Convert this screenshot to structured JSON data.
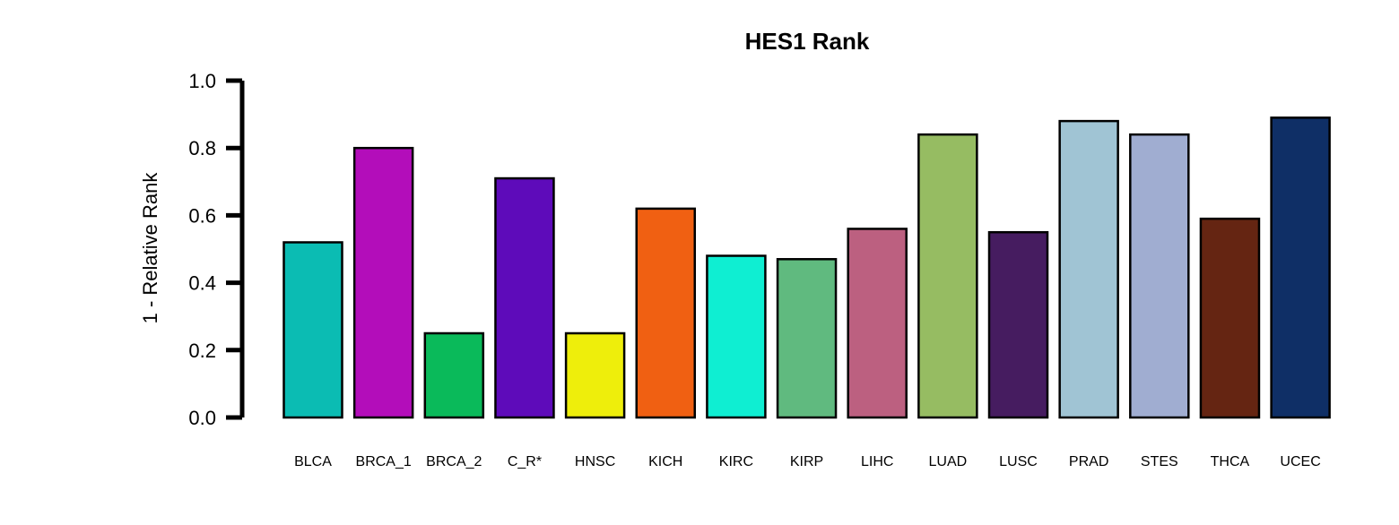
{
  "chart_data": {
    "type": "bar",
    "title": "HES1 Rank",
    "xlabel": "",
    "ylabel": "1 - Relative Rank",
    "ylim": [
      0,
      1
    ],
    "yticks": [
      "0.0",
      "0.2",
      "0.4",
      "0.6",
      "0.8",
      "1.0"
    ],
    "grid": false,
    "legend": "none",
    "categories": [
      "BLCA",
      "BRCA_1",
      "BRCA_2",
      "C_R*",
      "HNSC",
      "KICH",
      "KIRC",
      "KIRP",
      "LIHC",
      "LUAD",
      "LUSC",
      "PRAD",
      "STES",
      "THCA",
      "UCEC"
    ],
    "values": [
      0.52,
      0.8,
      0.25,
      0.71,
      0.25,
      0.62,
      0.48,
      0.47,
      0.56,
      0.84,
      0.55,
      0.88,
      0.84,
      0.59,
      0.89
    ],
    "colors": [
      "#0BBCB3",
      "#B30DBA",
      "#0ABA5A",
      "#5E0BBA",
      "#EEEE0B",
      "#F06012",
      "#0FEED2",
      "#60BA7F",
      "#BC6080",
      "#96BC62",
      "#461C60",
      "#A0C4D4",
      "#A0ADD1",
      "#652512",
      "#0F2F66"
    ]
  }
}
